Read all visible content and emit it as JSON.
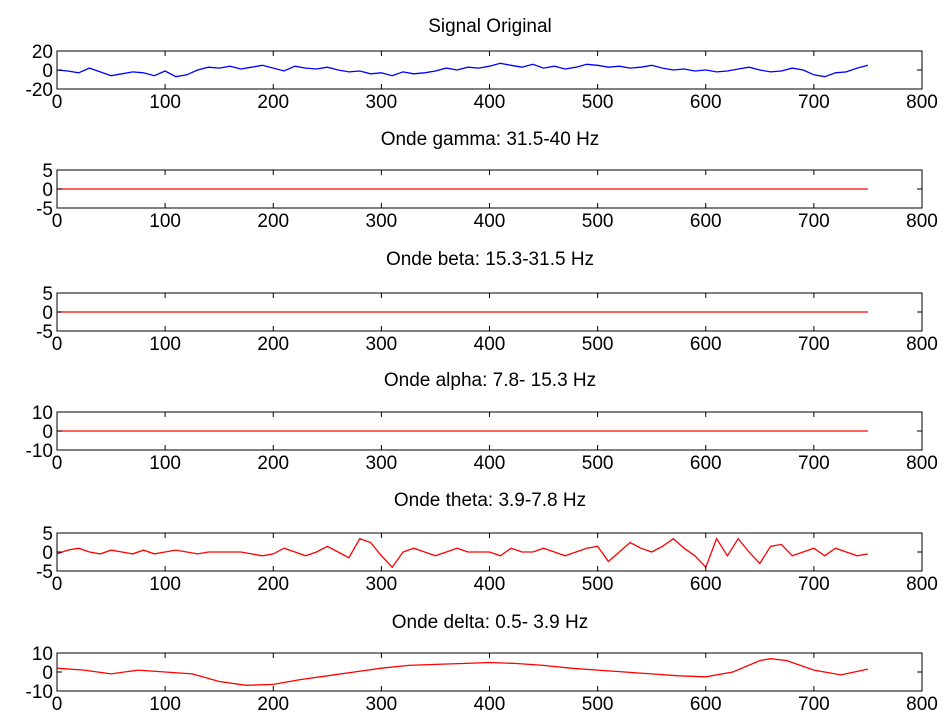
{
  "figure": {
    "background": "#ffffff",
    "axis_color": "#000000"
  },
  "chart_data": [
    {
      "type": "line",
      "title": "Signal Original",
      "xlim": [
        0,
        800
      ],
      "ylim": [
        -20,
        20
      ],
      "xticks": [
        0,
        100,
        200,
        300,
        400,
        500,
        600,
        700,
        800
      ],
      "xtick_labels": [
        "0",
        "100",
        "200",
        "300",
        "400",
        "500",
        "600",
        "700",
        "800"
      ],
      "yticks": [
        20,
        0,
        -20
      ],
      "ytick_labels": [
        "20",
        "0",
        "-20"
      ],
      "color": "#0000ff",
      "series": [
        {
          "x": [
            0,
            10,
            20,
            30,
            40,
            50,
            60,
            70,
            80,
            90,
            100,
            110,
            120,
            130,
            140,
            150,
            160,
            170,
            180,
            190,
            200,
            210,
            220,
            230,
            240,
            250,
            260,
            270,
            280,
            290,
            300,
            310,
            320,
            330,
            340,
            350,
            360,
            370,
            380,
            390,
            400,
            410,
            420,
            430,
            440,
            450,
            460,
            470,
            480,
            490,
            500,
            510,
            520,
            530,
            540,
            550,
            560,
            570,
            580,
            590,
            600,
            610,
            620,
            630,
            640,
            650,
            660,
            670,
            680,
            690,
            700,
            710,
            720,
            730,
            740,
            750
          ],
          "values": [
            0,
            -1,
            -3,
            2,
            -2,
            -6,
            -4,
            -2,
            -3,
            -6,
            -1,
            -7,
            -5,
            0,
            3,
            2,
            4,
            1,
            3,
            5,
            2,
            -1,
            4,
            2,
            1,
            3,
            0,
            -2,
            -1,
            -4,
            -3,
            -6,
            -2,
            -4,
            -3,
            -1,
            2,
            0,
            3,
            2,
            4,
            7,
            5,
            3,
            6,
            2,
            4,
            1,
            3,
            6,
            5,
            3,
            4,
            2,
            3,
            5,
            2,
            0,
            1,
            -1,
            0,
            -2,
            -1,
            1,
            3,
            0,
            -2,
            -1,
            2,
            0,
            -5,
            -7,
            -3,
            -2,
            2,
            5
          ]
        }
      ]
    },
    {
      "type": "line",
      "title": "Onde gamma: 31.5-40 Hz",
      "xlim": [
        0,
        800
      ],
      "ylim": [
        -5,
        5
      ],
      "xticks": [
        0,
        100,
        200,
        300,
        400,
        500,
        600,
        700,
        800
      ],
      "xtick_labels": [
        "0",
        "100",
        "200",
        "300",
        "400",
        "500",
        "600",
        "700",
        "800"
      ],
      "yticks": [
        5,
        0,
        -5
      ],
      "ytick_labels": [
        "5",
        "0",
        "-5"
      ],
      "color": "#ff0000",
      "series": [
        {
          "x": [
            0,
            750
          ],
          "values": [
            0,
            0
          ]
        }
      ]
    },
    {
      "type": "line",
      "title": "Onde beta: 15.3-31.5 Hz",
      "xlim": [
        0,
        800
      ],
      "ylim": [
        -5,
        5
      ],
      "xticks": [
        0,
        100,
        200,
        300,
        400,
        500,
        600,
        700,
        800
      ],
      "xtick_labels": [
        "0",
        "100",
        "200",
        "300",
        "400",
        "500",
        "600",
        "700",
        "800"
      ],
      "yticks": [
        5,
        0,
        -5
      ],
      "ytick_labels": [
        "5",
        "0",
        "-5"
      ],
      "color": "#ff0000",
      "series": [
        {
          "x": [
            0,
            750
          ],
          "values": [
            0,
            0
          ]
        }
      ]
    },
    {
      "type": "line",
      "title": "Onde alpha: 7.8- 15.3 Hz",
      "xlim": [
        0,
        800
      ],
      "ylim": [
        -10,
        10
      ],
      "xticks": [
        0,
        100,
        200,
        300,
        400,
        500,
        600,
        700,
        800
      ],
      "xtick_labels": [
        "0",
        "100",
        "200",
        "300",
        "400",
        "500",
        "600",
        "700",
        "800"
      ],
      "yticks": [
        10,
        0,
        -10
      ],
      "ytick_labels": [
        "10",
        "0",
        "-10"
      ],
      "color": "#ff0000",
      "series": [
        {
          "x": [
            0,
            750
          ],
          "values": [
            0,
            0
          ]
        }
      ]
    },
    {
      "type": "line",
      "title": "Onde theta: 3.9-7.8 Hz",
      "xlim": [
        0,
        800
      ],
      "ylim": [
        -5,
        5
      ],
      "xticks": [
        0,
        100,
        200,
        300,
        400,
        500,
        600,
        700,
        800
      ],
      "xtick_labels": [
        "0",
        "100",
        "200",
        "300",
        "400",
        "500",
        "600",
        "700",
        "800"
      ],
      "yticks": [
        5,
        0,
        -5
      ],
      "ytick_labels": [
        "5",
        "0",
        "-5"
      ],
      "color": "#ff0000",
      "series": [
        {
          "x": [
            0,
            10,
            20,
            30,
            40,
            50,
            60,
            70,
            80,
            90,
            100,
            110,
            120,
            130,
            140,
            150,
            160,
            170,
            180,
            190,
            200,
            210,
            220,
            230,
            240,
            250,
            260,
            270,
            280,
            290,
            300,
            310,
            320,
            330,
            340,
            350,
            360,
            370,
            380,
            390,
            400,
            410,
            420,
            430,
            440,
            450,
            460,
            470,
            480,
            490,
            500,
            510,
            520,
            530,
            540,
            550,
            560,
            570,
            580,
            590,
            600,
            610,
            620,
            630,
            640,
            650,
            660,
            670,
            680,
            690,
            700,
            710,
            720,
            730,
            740,
            750
          ],
          "values": [
            -0.5,
            0.5,
            1,
            0,
            -0.5,
            0.5,
            0,
            -0.5,
            0.5,
            -0.5,
            0,
            0.5,
            0,
            -0.5,
            0,
            0,
            0,
            0,
            -0.5,
            -1,
            -0.5,
            1,
            0,
            -1,
            0,
            1.5,
            0,
            -1.5,
            3.5,
            2.5,
            -1,
            -4,
            0,
            1,
            0,
            -1,
            0,
            1,
            0,
            0,
            0,
            -1,
            1,
            0,
            0,
            1,
            0,
            -1,
            0,
            1,
            1.5,
            -2.5,
            0,
            2.5,
            1,
            0,
            1.5,
            3.5,
            1,
            -1,
            -4,
            3.5,
            -1,
            3.5,
            0,
            -3,
            1.5,
            2,
            -1,
            0,
            1,
            -1,
            1,
            0,
            -1,
            -0.5
          ]
        }
      ]
    },
    {
      "type": "line",
      "title": "Onde delta: 0.5- 3.9 Hz",
      "xlim": [
        0,
        800
      ],
      "ylim": [
        -10,
        10
      ],
      "xticks": [
        0,
        100,
        200,
        300,
        400,
        500,
        600,
        700,
        800
      ],
      "xtick_labels": [
        "0",
        "100",
        "200",
        "300",
        "400",
        "500",
        "600",
        "700",
        "800"
      ],
      "yticks": [
        10,
        0,
        -10
      ],
      "ytick_labels": [
        "10",
        "0",
        "-10"
      ],
      "color": "#ff0000",
      "series": [
        {
          "x": [
            0,
            25,
            50,
            75,
            100,
            125,
            150,
            175,
            200,
            225,
            250,
            275,
            300,
            325,
            350,
            375,
            400,
            425,
            450,
            475,
            500,
            525,
            550,
            575,
            600,
            625,
            650,
            660,
            675,
            700,
            725,
            750
          ],
          "values": [
            2,
            1,
            -1,
            1,
            0,
            -1,
            -5,
            -7,
            -6.5,
            -4,
            -2,
            0,
            2,
            3.5,
            4,
            4.5,
            5,
            4.5,
            3.5,
            2,
            1,
            0,
            -1,
            -2,
            -2.5,
            0,
            6,
            7,
            6,
            1,
            -1.5,
            1.5
          ]
        }
      ]
    }
  ]
}
